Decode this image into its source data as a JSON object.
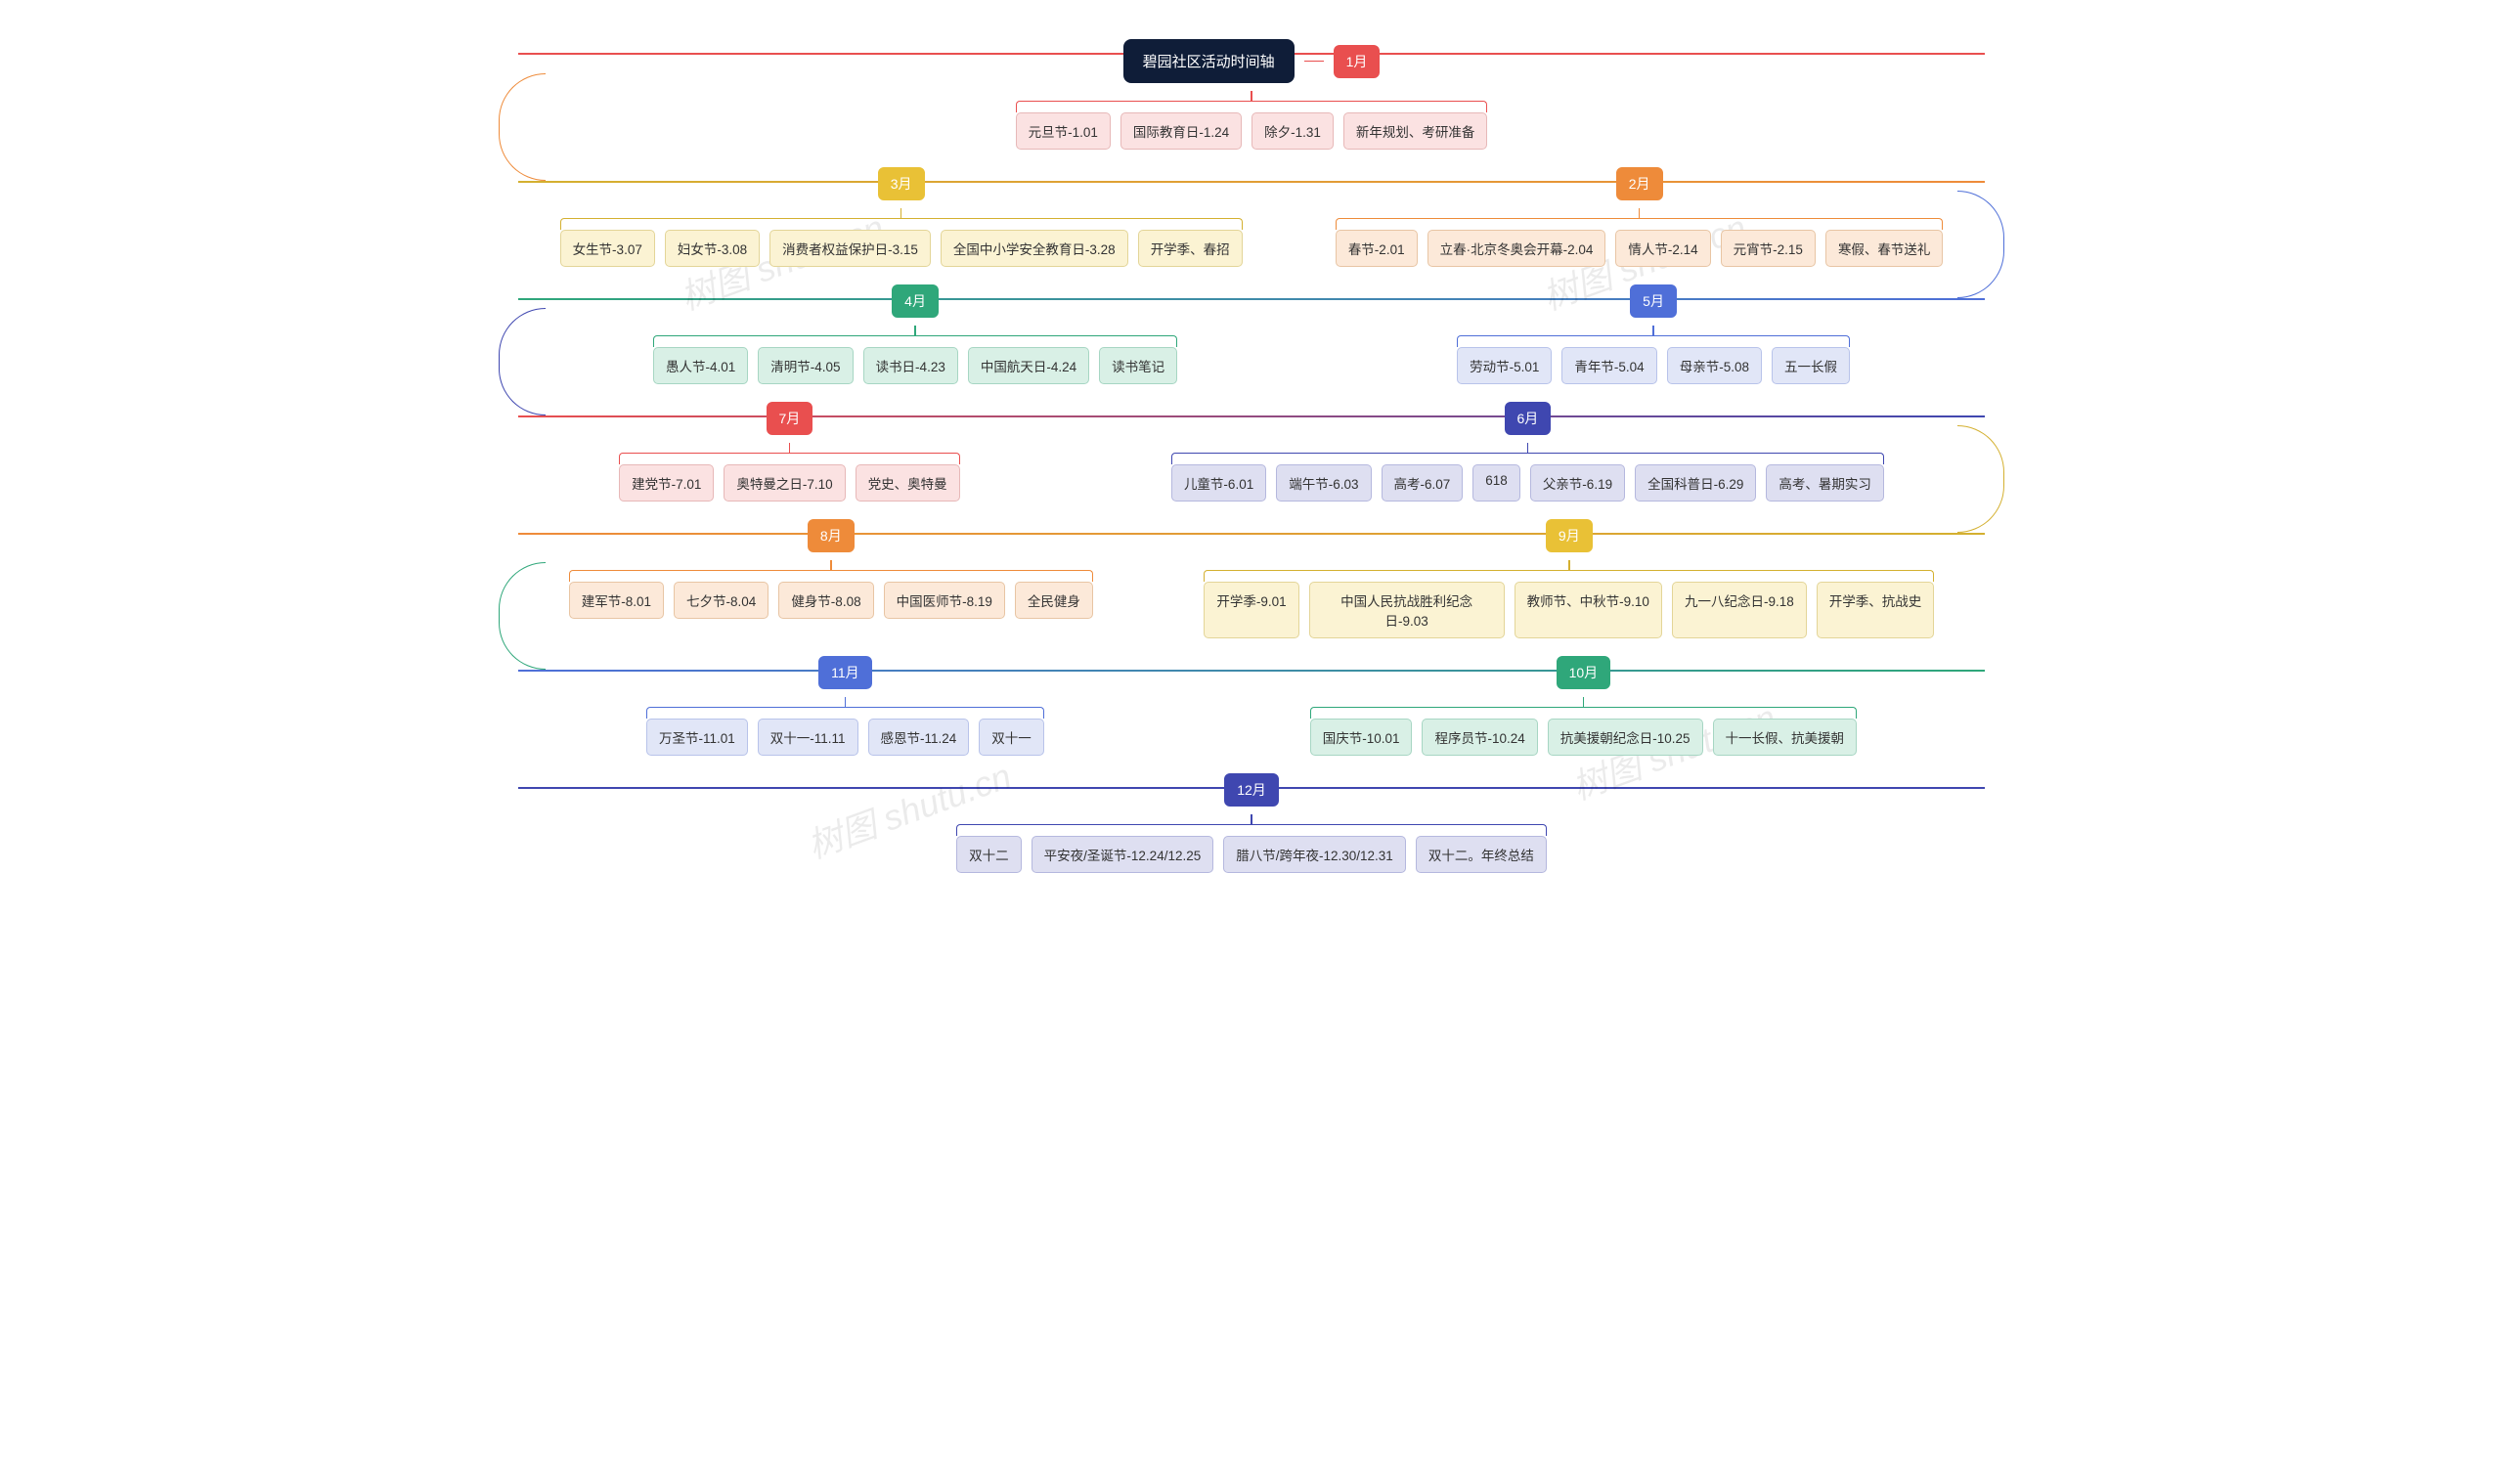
{
  "root_title": "碧园社区活动时间轴",
  "watermark": "树图 shutu.cn",
  "palette": {
    "red": {
      "box": "#e94f4f",
      "leaf_bg": "#fbe2e2",
      "leaf_border": "#e7b8b8",
      "line": "#e94f4f"
    },
    "orange": {
      "box": "#ee8b3a",
      "leaf_bg": "#fce9d9",
      "leaf_border": "#e8c5a4",
      "line": "#ee8b3a"
    },
    "yellow": {
      "box": "#e9c136",
      "leaf_bg": "#fbf3d3",
      "leaf_border": "#e3d598",
      "line": "#d4b030"
    },
    "green": {
      "box": "#2fa77a",
      "leaf_bg": "#d9f0e6",
      "leaf_border": "#a7d6c3",
      "line": "#2fa77a"
    },
    "blue": {
      "box": "#4f6fd8",
      "leaf_bg": "#e1e6f7",
      "leaf_border": "#b8c3ea",
      "line": "#4f6fd8"
    },
    "indigo": {
      "box": "#3f47b0",
      "leaf_bg": "#dedff1",
      "leaf_border": "#b5b8de",
      "line": "#3f47b0"
    }
  },
  "months": [
    {
      "id": "m1",
      "label": "1月",
      "color": "red",
      "items": [
        "元旦节-1.01",
        "国际教育日-1.24",
        "除夕-1.31",
        "新年规划、考研准备"
      ]
    },
    {
      "id": "m2",
      "label": "2月",
      "color": "orange",
      "items": [
        "春节-2.01",
        "立春·北京冬奥会开幕-2.04",
        "情人节-2.14",
        "元宵节-2.15",
        "寒假、春节送礼"
      ]
    },
    {
      "id": "m3",
      "label": "3月",
      "color": "yellow",
      "items": [
        "女生节-3.07",
        "妇女节-3.08",
        "消费者权益保护日-3.15",
        "全国中小学安全教育日-3.28",
        "开学季、春招"
      ]
    },
    {
      "id": "m4",
      "label": "4月",
      "color": "green",
      "items": [
        "愚人节-4.01",
        "清明节-4.05",
        "读书日-4.23",
        "中国航天日-4.24",
        "读书笔记"
      ]
    },
    {
      "id": "m5",
      "label": "5月",
      "color": "blue",
      "items": [
        "劳动节-5.01",
        "青年节-5.04",
        "母亲节-5.08",
        "五一长假"
      ]
    },
    {
      "id": "m6",
      "label": "6月",
      "color": "indigo",
      "items": [
        "儿童节-6.01",
        "端午节-6.03",
        "高考-6.07",
        "618",
        "父亲节-6.19",
        "全国科普日-6.29",
        "高考、暑期实习"
      ]
    },
    {
      "id": "m7",
      "label": "7月",
      "color": "red",
      "items": [
        "建党节-7.01",
        "奥特曼之日-7.10",
        "党史、奥特曼"
      ]
    },
    {
      "id": "m8",
      "label": "8月",
      "color": "orange",
      "items": [
        "建军节-8.01",
        "七夕节-8.04",
        "健身节-8.08",
        "中国医师节-8.19",
        "全民健身"
      ]
    },
    {
      "id": "m9",
      "label": "9月",
      "color": "yellow",
      "items": [
        "开学季-9.01",
        "中国人民抗战胜利纪念日-9.03",
        "教师节、中秋节-9.10",
        "九一八纪念日-9.18",
        "开学季、抗战史"
      ]
    },
    {
      "id": "m10",
      "label": "10月",
      "color": "green",
      "items": [
        "国庆节-10.01",
        "程序员节-10.24",
        "抗美援朝纪念日-10.25",
        "十一长假、抗美援朝"
      ]
    },
    {
      "id": "m11",
      "label": "11月",
      "color": "blue",
      "items": [
        "万圣节-11.01",
        "双十一-11.11",
        "感恩节-11.24",
        "双十一"
      ]
    },
    {
      "id": "m12",
      "label": "12月",
      "color": "indigo",
      "items": [
        "双十二",
        "平安夜/圣诞节-12.24/12.25",
        "腊八节/跨年夜-12.30/12.31",
        "双十二。年终总结"
      ]
    }
  ],
  "rows": [
    {
      "type": "root",
      "members": [
        "m1"
      ],
      "turn": "none",
      "root_before": true
    },
    {
      "type": "pair",
      "members": [
        "m3",
        "m2"
      ],
      "turn": "left"
    },
    {
      "type": "pair",
      "members": [
        "m4",
        "m5"
      ],
      "turn": "right"
    },
    {
      "type": "pair",
      "members": [
        "m7",
        "m6"
      ],
      "turn": "left"
    },
    {
      "type": "pair",
      "members": [
        "m8",
        "m9"
      ],
      "turn": "right"
    },
    {
      "type": "pair",
      "members": [
        "m11",
        "m10"
      ],
      "turn": "left"
    },
    {
      "type": "single",
      "members": [
        "m12"
      ],
      "turn": "none"
    }
  ]
}
